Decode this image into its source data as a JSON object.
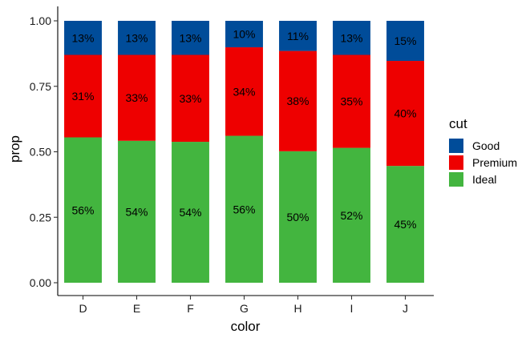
{
  "chart_data": {
    "type": "bar",
    "stacked": true,
    "categories": [
      "D",
      "E",
      "F",
      "G",
      "H",
      "I",
      "J"
    ],
    "series": [
      {
        "name": "Ideal",
        "color": "#43B53F",
        "values": [
          0.555,
          0.542,
          0.538,
          0.561,
          0.502,
          0.515,
          0.446
        ],
        "labels": [
          "56%",
          "54%",
          "54%",
          "56%",
          "50%",
          "52%",
          "45%"
        ]
      },
      {
        "name": "Premium",
        "color": "#EE0000",
        "values": [
          0.315,
          0.328,
          0.332,
          0.338,
          0.383,
          0.355,
          0.401
        ],
        "labels": [
          "31%",
          "33%",
          "33%",
          "34%",
          "38%",
          "35%",
          "40%"
        ]
      },
      {
        "name": "Good",
        "color": "#004C99",
        "values": [
          0.13,
          0.13,
          0.13,
          0.101,
          0.115,
          0.13,
          0.153
        ],
        "labels": [
          "13%",
          "13%",
          "13%",
          "10%",
          "11%",
          "13%",
          "15%"
        ]
      }
    ],
    "xlabel": "color",
    "ylabel": "prop",
    "ylim": [
      -0.04,
      1.04
    ],
    "yticks": [
      "0.00",
      "0.25",
      "0.50",
      "0.75",
      "1.00"
    ],
    "legend": {
      "title": "cut",
      "position": "right",
      "entries": [
        "Good",
        "Premium",
        "Ideal"
      ]
    },
    "grid": false
  }
}
